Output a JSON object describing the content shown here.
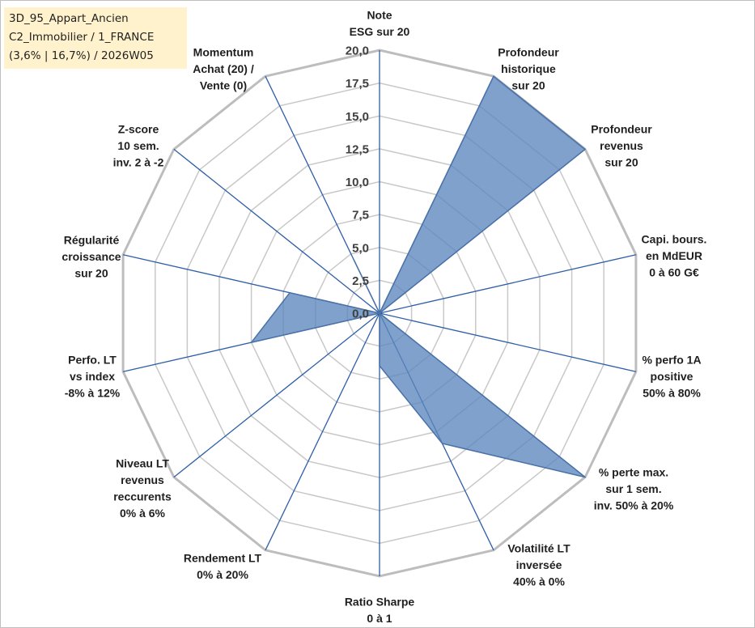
{
  "info": {
    "line1": "3D_95_Appart_Ancien",
    "line2": "C2_Immobilier / 1_FRANCE",
    "line3": "(3,6% | 16,7%) / 2026W05"
  },
  "colors": {
    "fill": "#5b87bd",
    "stroke": "#4a72a8",
    "spoke": "#2e5ea8",
    "grid": "#c8c8c8",
    "outer": "#bdbdbd"
  },
  "chart_data": {
    "type": "radar",
    "rmax": 20,
    "ticks": [
      "0,0",
      "2,5",
      "5,0",
      "7,5",
      "10,0",
      "12,5",
      "15,0",
      "17,5",
      "20,0"
    ],
    "axes": [
      {
        "lines": [
          "Note",
          "ESG sur 20"
        ]
      },
      {
        "lines": [
          "Profondeur",
          "historique",
          "sur 20"
        ]
      },
      {
        "lines": [
          "Profondeur",
          "revenus",
          "sur 20"
        ]
      },
      {
        "lines": [
          "Capi. bours.",
          "en MdEUR",
          "0 à 60 G€"
        ]
      },
      {
        "lines": [
          "% perfo 1A",
          "positive",
          "50% à 80%"
        ]
      },
      {
        "lines": [
          "% perte max.",
          "sur 1 sem.",
          "inv. 50% à 20%"
        ]
      },
      {
        "lines": [
          "Volatilité LT",
          "inversée",
          "40% à 0%"
        ]
      },
      {
        "lines": [
          "Ratio Sharpe",
          "0 à 1"
        ]
      },
      {
        "lines": [
          "Rendement LT",
          "0% à 20%"
        ]
      },
      {
        "lines": [
          "Niveau LT",
          "revenus",
          "reccurents",
          "0% à 6%"
        ]
      },
      {
        "lines": [
          "Perfo. LT",
          "vs index",
          "-8% à 12%"
        ]
      },
      {
        "lines": [
          "Régularité",
          "croissance",
          "sur 20"
        ]
      },
      {
        "lines": [
          "Z-score",
          "10 sem.",
          "inv. 2 à -2"
        ]
      },
      {
        "lines": [
          "Momentum",
          "Achat (20) /",
          "Vente (0)"
        ]
      }
    ],
    "values": [
      0,
      20,
      20,
      0,
      0,
      20,
      11,
      4,
      0,
      0,
      10,
      7,
      0,
      4.5
    ]
  }
}
